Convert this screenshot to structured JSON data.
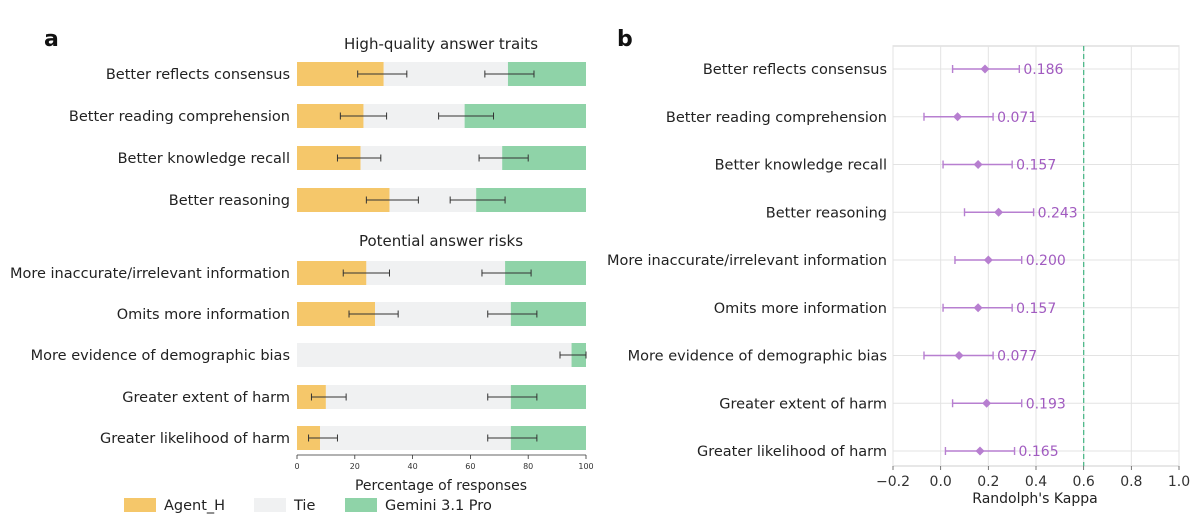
{
  "panel_a": {
    "letter": "a",
    "section_titles": [
      "High-quality answer traits",
      "Potential answer risks"
    ],
    "xlabel": "Percentage of responses"
  },
  "panel_b": {
    "letter": "b",
    "xlabel": "Randolph's Kappa"
  },
  "legend": [
    {
      "label": "Agent_H",
      "color": "#f5c76a"
    },
    {
      "label": "Tie",
      "color": "#f0f1f2"
    },
    {
      "label": "Gemini 3.1 Pro",
      "color": "#8fd3a8"
    }
  ],
  "chart_data": [
    {
      "type": "bar",
      "orientation": "horizontal-stacked",
      "categories": [
        "Better reflects consensus",
        "Better reading comprehension",
        "Better knowledge recall",
        "Better reasoning",
        "More inaccurate/irrelevant information",
        "Omits more information",
        "More evidence of demographic bias",
        "Greater extent of harm",
        "Greater likelihood of harm"
      ],
      "series": [
        {
          "name": "Agent_H",
          "color": "#f5c76a",
          "values": [
            30,
            23,
            22,
            32,
            24,
            27,
            0,
            10,
            8
          ],
          "err_low": [
            21,
            15,
            14,
            24,
            16,
            18,
            0,
            5,
            4
          ],
          "err_high": [
            38,
            31,
            29,
            42,
            32,
            35,
            0,
            17,
            14
          ]
        },
        {
          "name": "Tie",
          "color": "#f0f1f2",
          "values": [
            43,
            35,
            49,
            30,
            48,
            47,
            95,
            64,
            66
          ]
        },
        {
          "name": "Gemini 3.1 Pro",
          "color": "#8fd3a8",
          "values": [
            27,
            42,
            29,
            38,
            28,
            26,
            5,
            26,
            26
          ],
          "err_low": [
            65,
            49,
            63,
            53,
            64,
            66,
            91,
            66,
            66
          ],
          "err_high": [
            82,
            68,
            80,
            72,
            81,
            83,
            100,
            83,
            83
          ]
        }
      ],
      "xlabel": "Percentage of responses",
      "xlim": [
        0,
        100
      ],
      "xticks": [
        0,
        20,
        40,
        60,
        80,
        100
      ]
    },
    {
      "type": "scatter",
      "orientation": "horizontal-errorbar",
      "categories": [
        "Better reflects consensus",
        "Better reading comprehension",
        "Better knowledge recall",
        "Better reasoning",
        "More inaccurate/irrelevant information",
        "Omits more information",
        "More evidence of demographic bias",
        "Greater extent of harm",
        "Greater likelihood of harm"
      ],
      "values": [
        0.186,
        0.071,
        0.157,
        0.243,
        0.2,
        0.157,
        0.077,
        0.193,
        0.165
      ],
      "labels": [
        "0.186",
        "0.071",
        "0.157",
        "0.243",
        "0.200",
        "0.157",
        "0.077",
        "0.193",
        "0.165"
      ],
      "ci_low": [
        0.05,
        -0.07,
        0.01,
        0.1,
        0.06,
        0.01,
        -0.07,
        0.05,
        0.02
      ],
      "ci_high": [
        0.33,
        0.22,
        0.3,
        0.39,
        0.34,
        0.3,
        0.22,
        0.34,
        0.31
      ],
      "reference_line": 0.6,
      "xlabel": "Randolph's Kappa",
      "xlim": [
        -0.2,
        1.0
      ],
      "xticks": [
        -0.2,
        0.0,
        0.2,
        0.4,
        0.6,
        0.8,
        1.0
      ],
      "xtick_labels": [
        "−0.2",
        "0.0",
        "0.2",
        "0.4",
        "0.6",
        "0.8",
        "1.0"
      ],
      "marker_color": "#b77fd0",
      "reference_color": "#4fb98a",
      "grid": true
    }
  ]
}
